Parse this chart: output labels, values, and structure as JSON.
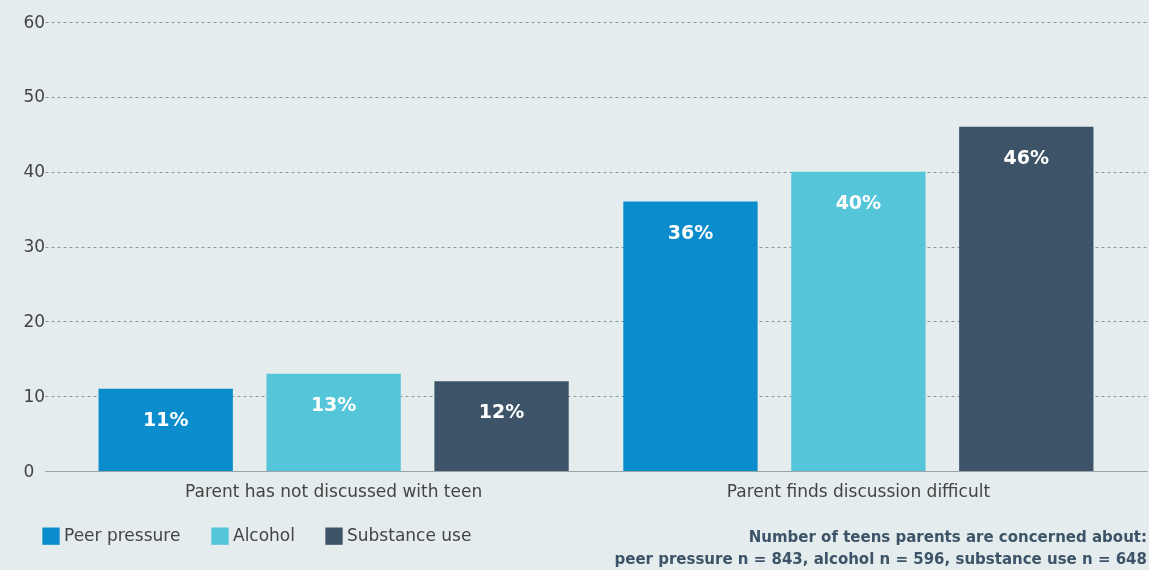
{
  "chart_data": {
    "type": "bar",
    "categories": [
      "Parent has not discussed with teen",
      "Parent finds discussion difficult"
    ],
    "series": [
      {
        "name": "Peer pressure",
        "color": "#0a8ccd",
        "values": [
          11,
          36
        ],
        "value_labels": [
          "11%",
          "36%"
        ]
      },
      {
        "name": "Alcohol",
        "color": "#55c6da",
        "values": [
          13,
          40
        ],
        "value_labels": [
          "13%",
          "40%"
        ]
      },
      {
        "name": "Substance use",
        "color": "#3d5468",
        "values": [
          12,
          46
        ],
        "value_labels": [
          "12%",
          "46%"
        ]
      }
    ],
    "ylim": [
      0,
      60
    ],
    "yticks": [
      0,
      10,
      20,
      30,
      40,
      50,
      60
    ],
    "grid": "y",
    "legend": "bottom left",
    "annotations": [
      "Number of teens parents are concerned about:",
      "peer pressure n = 843, alcohol n = 596, substance use n = 648"
    ]
  }
}
